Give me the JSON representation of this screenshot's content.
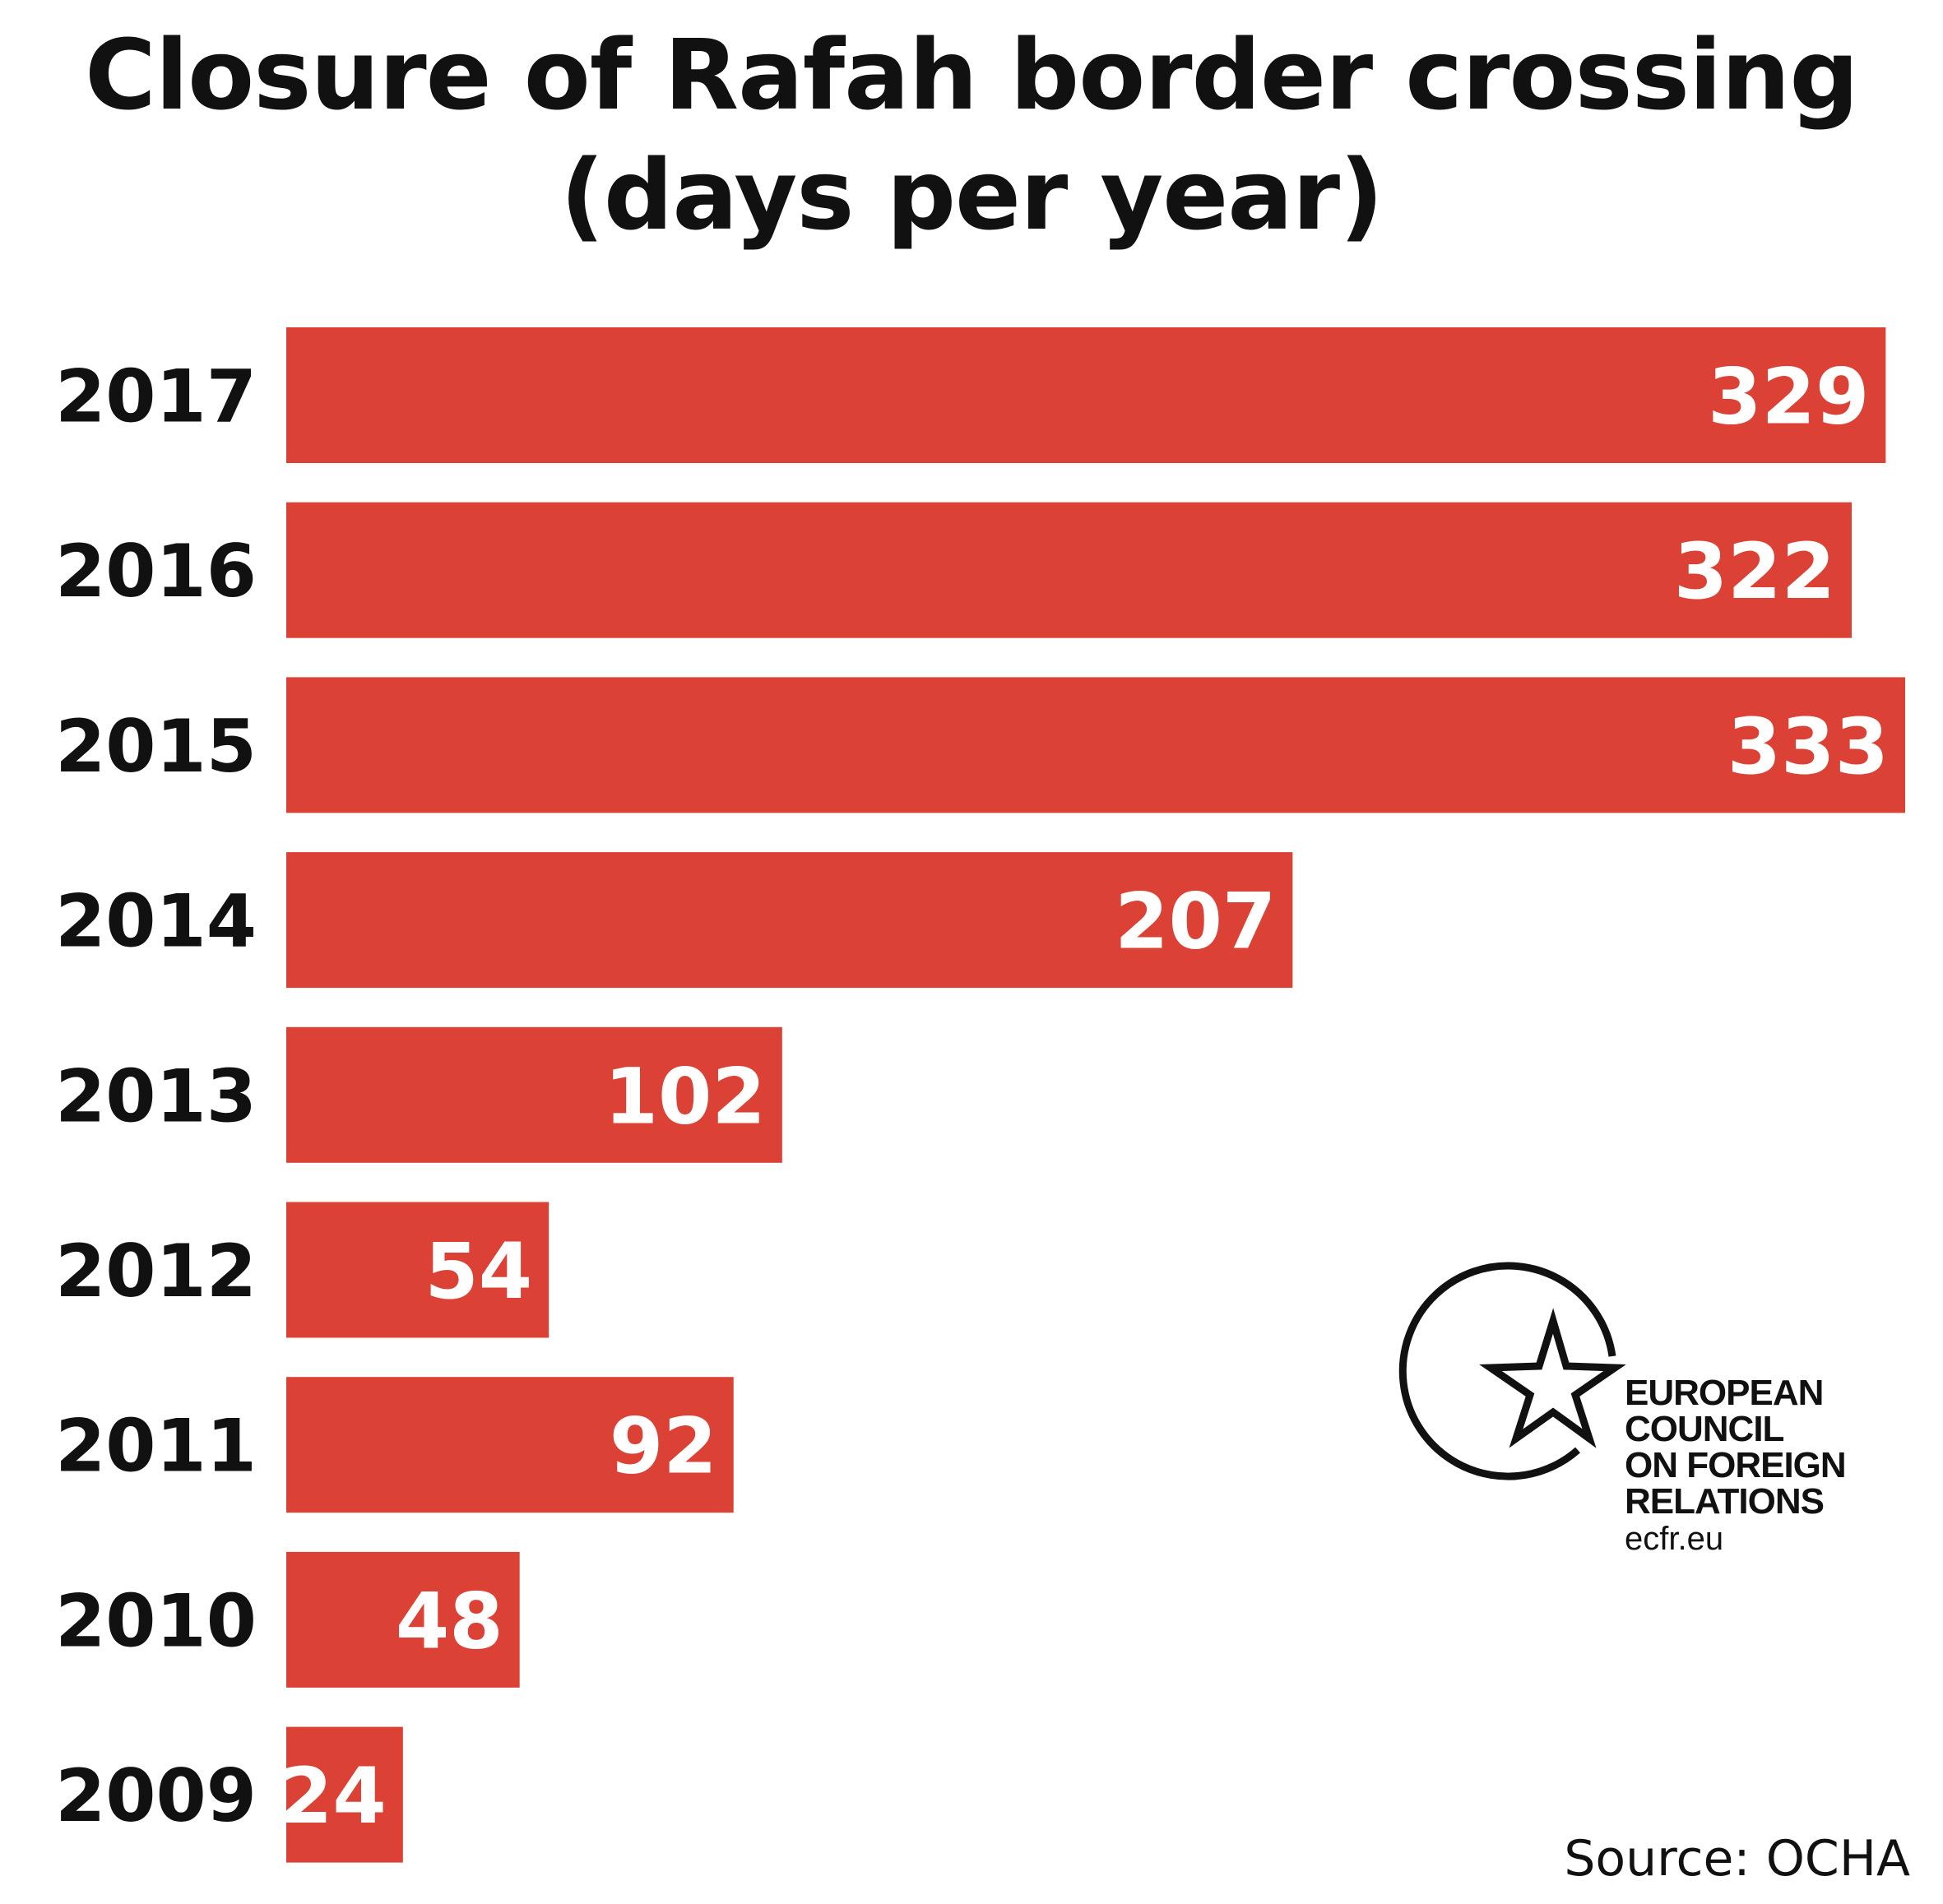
{
  "title": {
    "line1": "Closure of Rafah border crossing",
    "line2": "(days per year)"
  },
  "chart_data": {
    "type": "bar",
    "orientation": "horizontal",
    "categories": [
      "2017",
      "2016",
      "2015",
      "2014",
      "2013",
      "2012",
      "2011",
      "2010",
      "2009"
    ],
    "values": [
      329,
      322,
      333,
      207,
      102,
      54,
      92,
      48,
      24
    ],
    "title": "Closure of Rafah border crossing (days per year)",
    "bar_color": "#db4135",
    "value_label_color": "#ffffff"
  },
  "logo": {
    "line1": "EUROPEAN",
    "line2": "COUNCIL",
    "line3": "ON FOREIGN",
    "line4": "RELATIONS",
    "url": "ecfr.eu"
  },
  "source": "Source: OCHA"
}
